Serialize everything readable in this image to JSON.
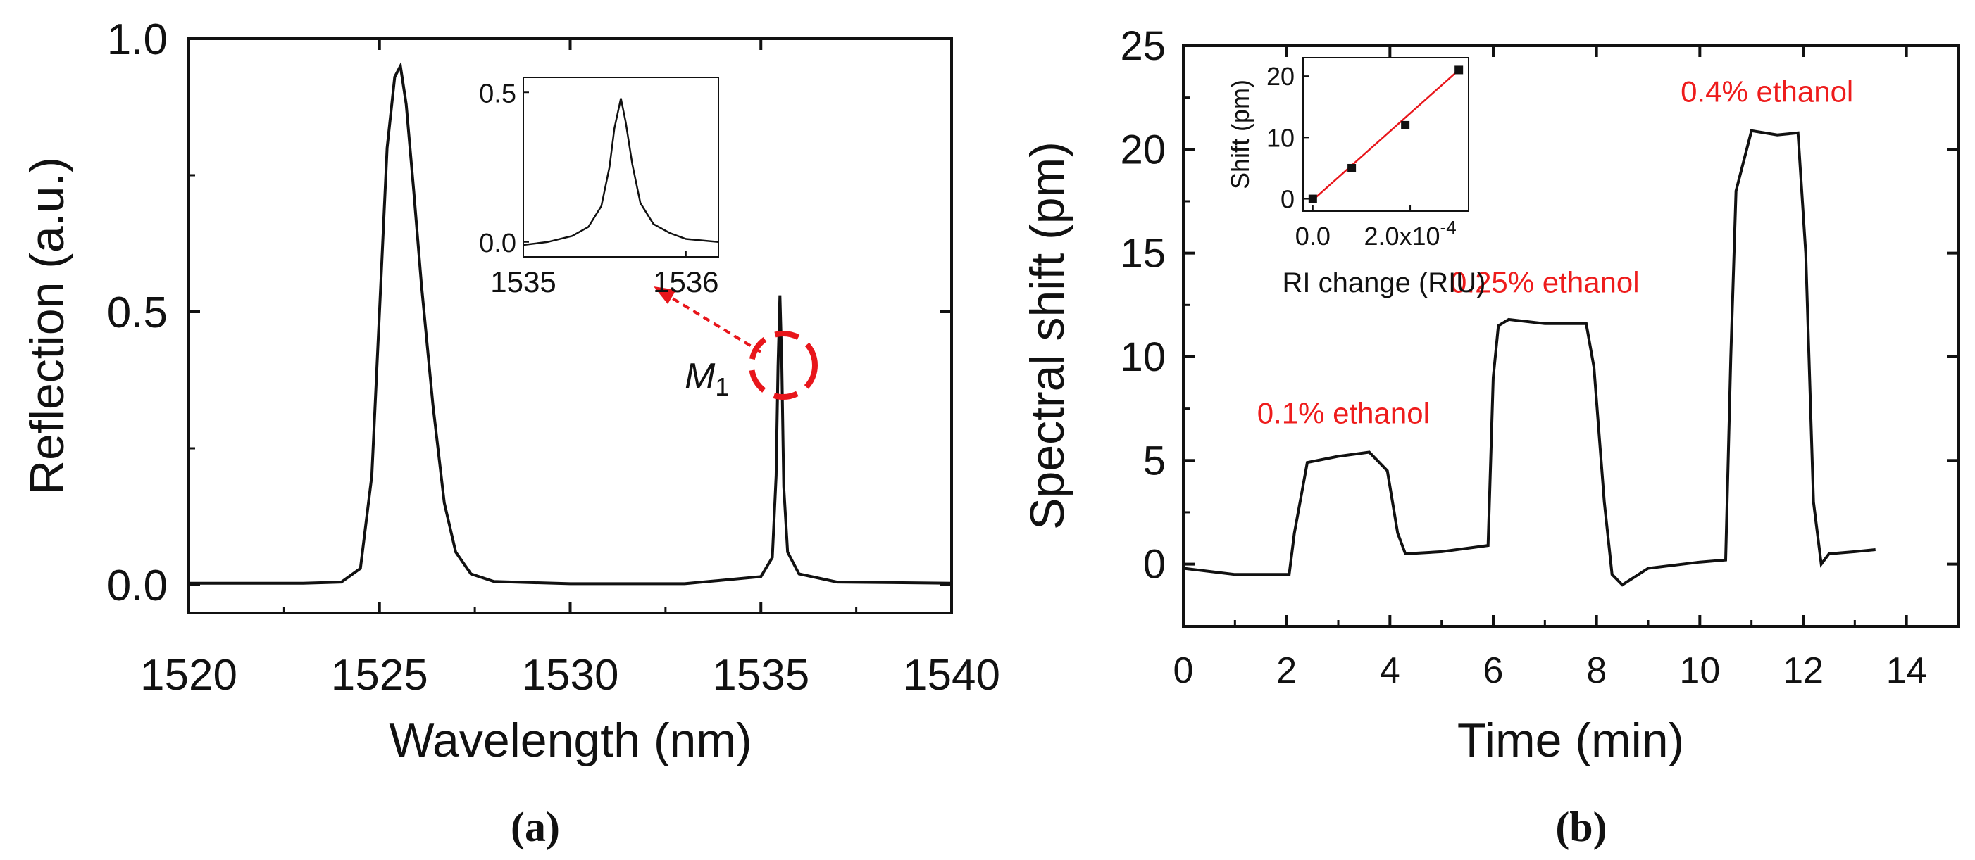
{
  "panel_a": {
    "caption": "(a)",
    "xlabel": "Wavelength (nm)",
    "ylabel": "Reflection (a.u.)",
    "xticks": [
      "1520",
      "1525",
      "1530",
      "1535",
      "1540"
    ],
    "yticks": [
      "0.0",
      "0.5",
      "1.0"
    ],
    "marker_label": "M",
    "marker_subscript": "1",
    "inset": {
      "xticks": [
        "1535",
        "1536"
      ],
      "yticks": [
        "0.0",
        "0.5"
      ]
    }
  },
  "panel_b": {
    "caption": "(b)",
    "xlabel": "Time (min)",
    "ylabel": "Spectral shift (pm)",
    "xticks": [
      "0",
      "2",
      "4",
      "6",
      "8",
      "10",
      "12",
      "14"
    ],
    "yticks": [
      "0",
      "5",
      "10",
      "15",
      "20",
      "25"
    ],
    "annotations": [
      "0.1% ethanol",
      "0.25% ethanol",
      "0.4% ethanol"
    ],
    "inset": {
      "xlabel": "RI change (RIU)",
      "ylabel": "Shift (pm)",
      "xticks": [
        "0.0",
        "2.0x10"
      ],
      "xtick_exponent": "-4",
      "yticks": [
        "0",
        "10",
        "20"
      ]
    }
  },
  "colors": {
    "trace": "#111111",
    "annotation": "#ee1c1c",
    "marker": "#e8161b",
    "fit": "#e8161b"
  },
  "chart_data": [
    {
      "type": "line",
      "xlabel": "Wavelength (nm)",
      "ylabel": "Reflection (a.u.)",
      "xlim": [
        1520,
        1540
      ],
      "ylim": [
        0,
        1.0
      ],
      "series": [
        {
          "x": [
            1520,
            1523,
            1524,
            1524.5,
            1524.8,
            1525.0,
            1525.2,
            1525.4,
            1525.55,
            1525.7,
            1525.9,
            1526.1,
            1526.4,
            1526.7,
            1527.0,
            1527.4,
            1528,
            1530,
            1533,
            1535.0,
            1535.3,
            1535.4,
            1535.45,
            1535.5,
            1535.55,
            1535.6,
            1535.7,
            1536.0,
            1537,
            1540
          ],
          "y": [
            0.003,
            0.003,
            0.005,
            0.03,
            0.2,
            0.5,
            0.8,
            0.93,
            0.95,
            0.88,
            0.72,
            0.55,
            0.33,
            0.15,
            0.06,
            0.02,
            0.006,
            0.002,
            0.002,
            0.015,
            0.05,
            0.2,
            0.4,
            0.53,
            0.4,
            0.18,
            0.06,
            0.02,
            0.005,
            0.003
          ]
        }
      ],
      "inset": {
        "type": "line",
        "xlim": [
          1535,
          1536.2
        ],
        "ylim": [
          -0.05,
          0.55
        ],
        "series": [
          {
            "x": [
              1535.0,
              1535.15,
              1535.3,
              1535.4,
              1535.48,
              1535.53,
              1535.56,
              1535.6,
              1535.63,
              1535.67,
              1535.72,
              1535.8,
              1535.9,
              1536.0,
              1536.2
            ],
            "y": [
              -0.01,
              0.0,
              0.02,
              0.05,
              0.12,
              0.25,
              0.38,
              0.48,
              0.4,
              0.26,
              0.13,
              0.06,
              0.03,
              0.01,
              0.0
            ]
          }
        ]
      }
    },
    {
      "type": "line",
      "xlabel": "Time (min)",
      "ylabel": "Spectral shift (pm)",
      "xlim": [
        0,
        15
      ],
      "ylim": [
        -3,
        25
      ],
      "series": [
        {
          "x": [
            0,
            1.0,
            2.05,
            2.15,
            2.4,
            3.0,
            3.6,
            3.95,
            4.15,
            4.3,
            5.0,
            5.9,
            6.0,
            6.1,
            6.3,
            7.0,
            7.8,
            7.95,
            8.15,
            8.3,
            8.5,
            9.0,
            10.0,
            10.5,
            10.6,
            10.7,
            11.0,
            11.5,
            11.9,
            12.05,
            12.2,
            12.35,
            12.5,
            13.0,
            13.4
          ],
          "y": [
            -0.2,
            -0.5,
            -0.5,
            1.5,
            4.9,
            5.2,
            5.4,
            4.5,
            1.5,
            0.5,
            0.6,
            0.9,
            9.0,
            11.5,
            11.8,
            11.6,
            11.6,
            9.5,
            3.0,
            -0.5,
            -1.0,
            -0.2,
            0.1,
            0.2,
            10.0,
            18.0,
            20.9,
            20.7,
            20.8,
            15.0,
            3.0,
            0.0,
            0.5,
            0.6,
            0.7
          ]
        }
      ],
      "annotations": [
        {
          "text": "0.1% ethanol",
          "x": 3.1,
          "y": 6.8
        },
        {
          "text": "0.25% ethanol",
          "x": 7.0,
          "y": 13.1
        },
        {
          "text": "0.4% ethanol",
          "x": 11.3,
          "y": 22.3
        }
      ],
      "inset": {
        "type": "scatter",
        "xlabel": "RI change (RIU)",
        "ylabel": "Shift (pm)",
        "xlim": [
          -2e-05,
          0.00032
        ],
        "ylim": [
          -2,
          23
        ],
        "series": [
          {
            "x": [
              0,
              8e-05,
              0.00019,
              0.0003
            ],
            "y": [
              0,
              5,
              12,
              21
            ]
          }
        ],
        "fit": {
          "x": [
            0,
            0.0003
          ],
          "y": [
            -0.2,
            21
          ]
        }
      }
    }
  ]
}
